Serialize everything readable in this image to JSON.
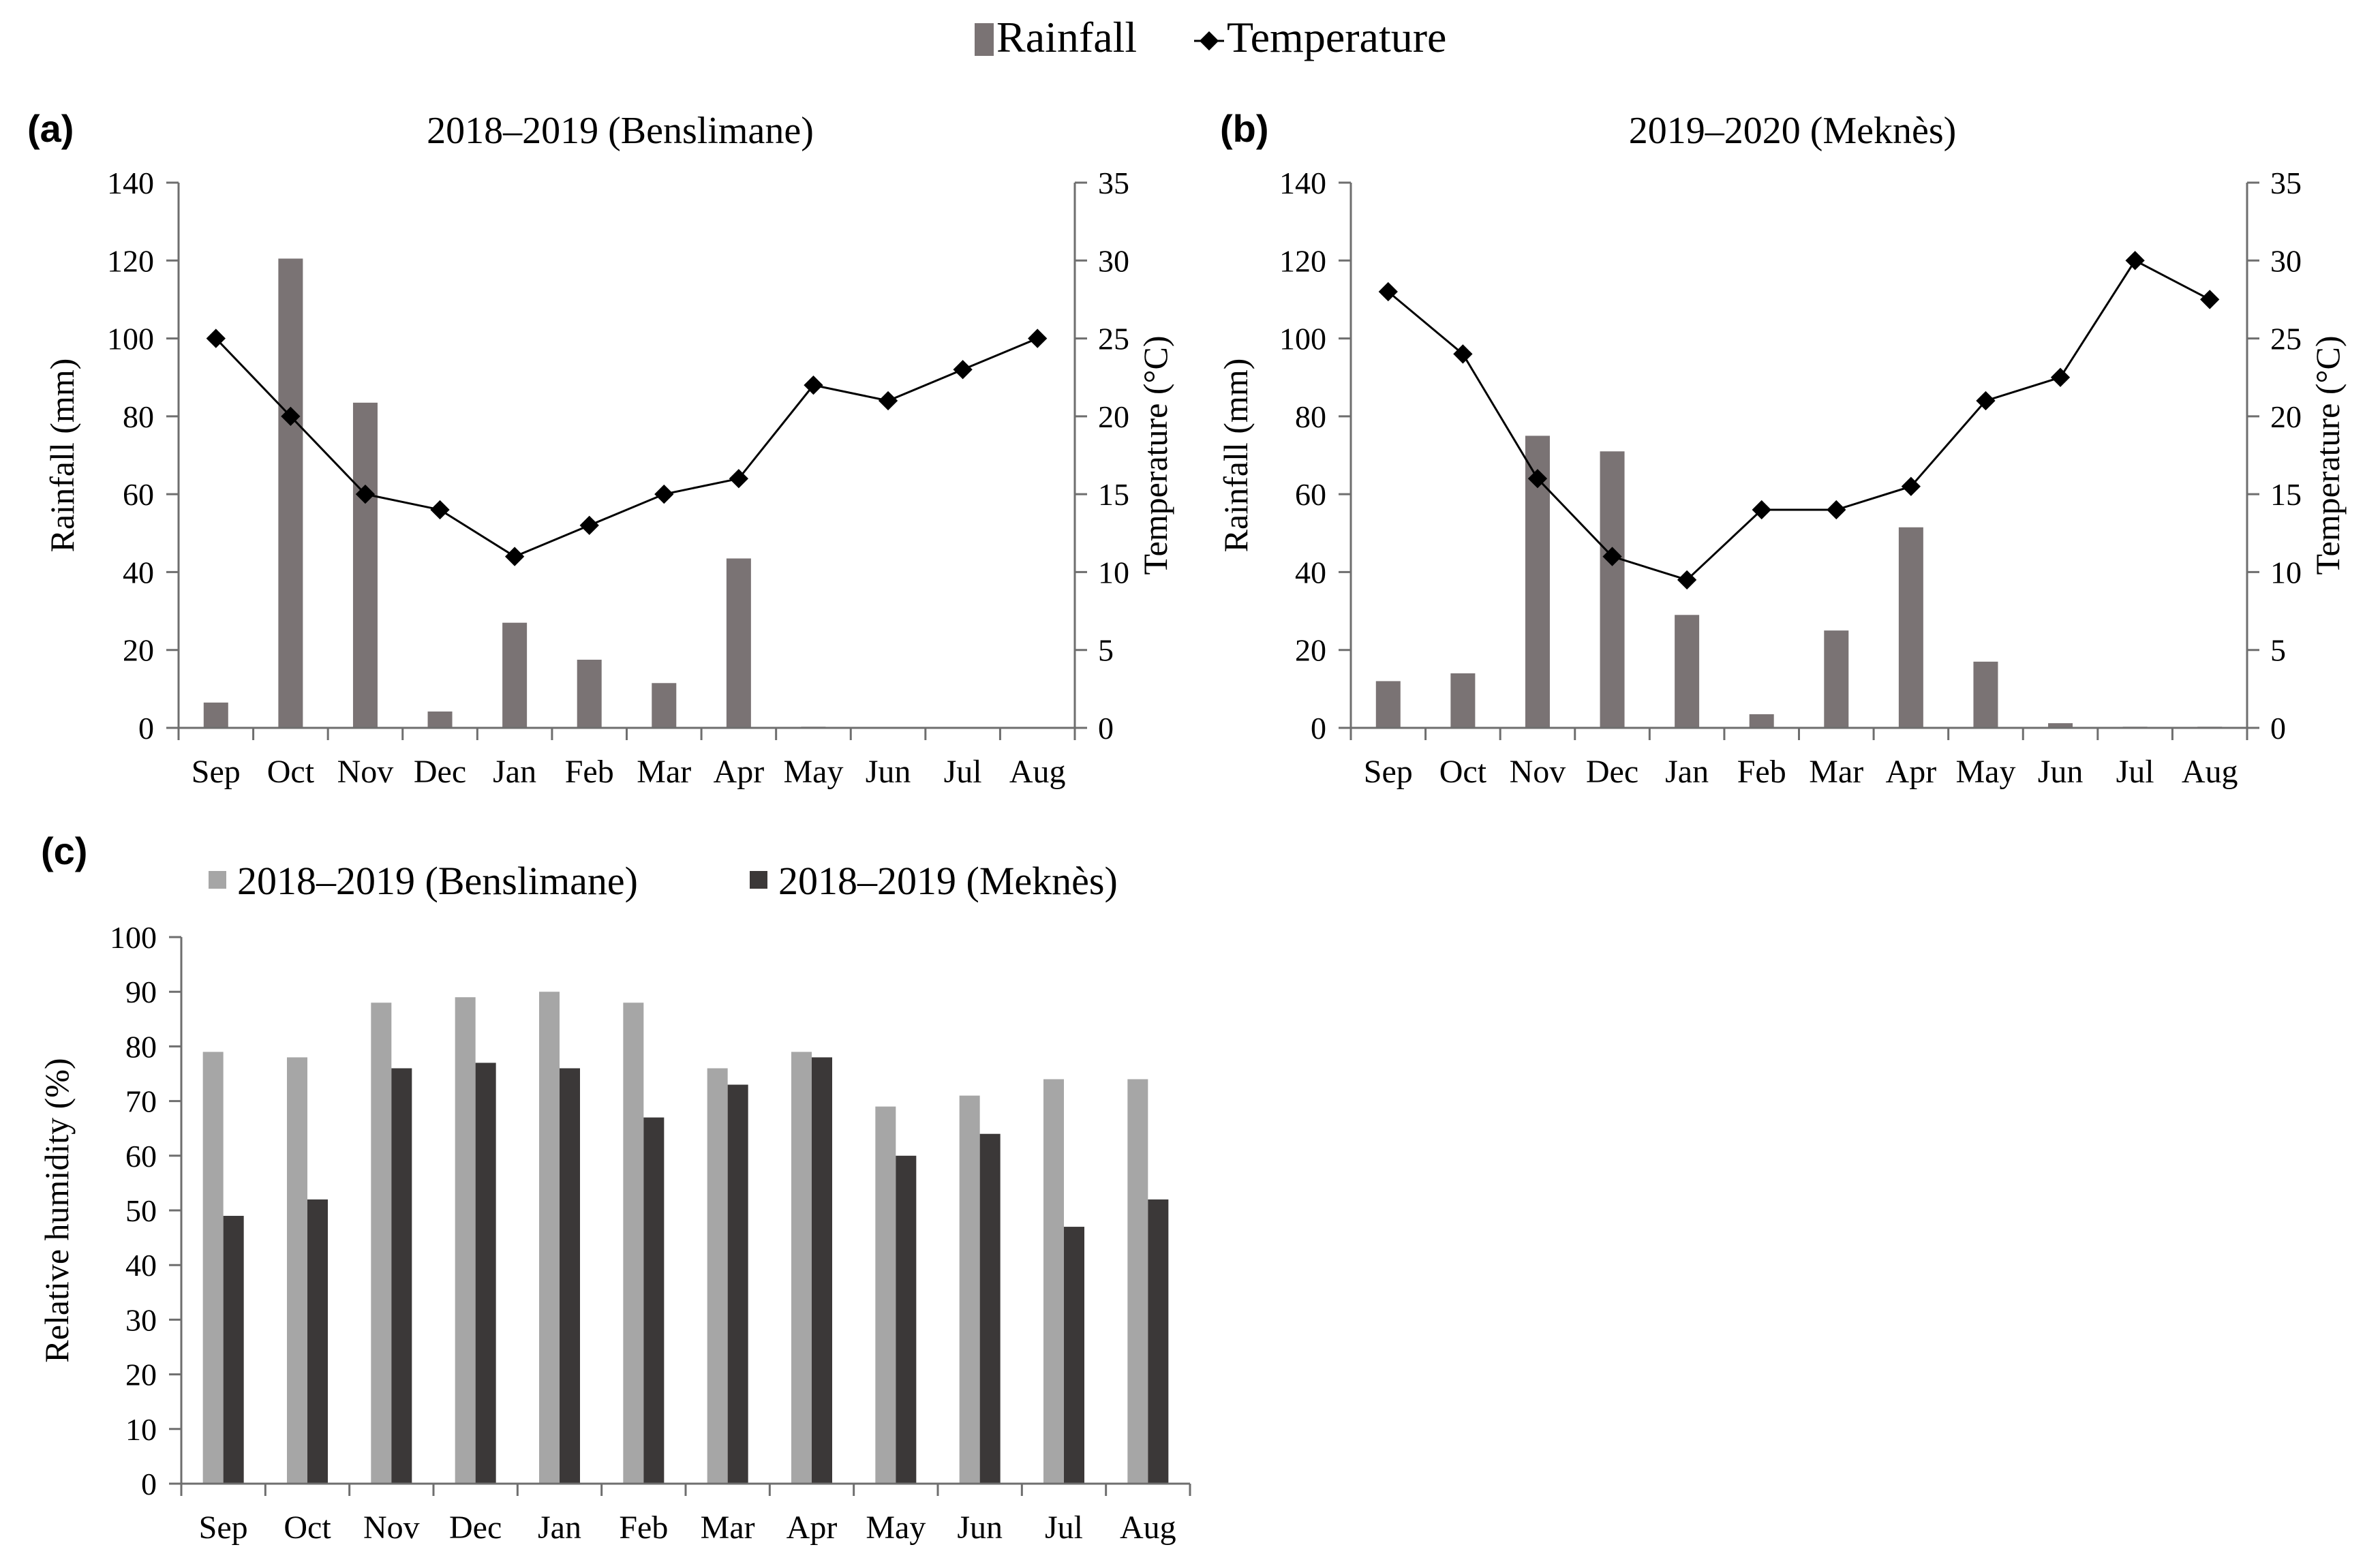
{
  "legend_top": {
    "rainfall_label": "Rainfall",
    "temperature_label": "Temperature"
  },
  "colors": {
    "rainfall_bar": "#7a7374",
    "temperature_line": "#000000",
    "benslimane_bar": "#a6a6a6",
    "meknes_bar": "#3b3838",
    "axis": "#6e6e6e"
  },
  "chart_data": [
    {
      "id": "a",
      "panel_label": "(a)",
      "type": "bar+line",
      "title": "2018–2019 (Benslimane)",
      "categories": [
        "Sep",
        "Oct",
        "Nov",
        "Dec",
        "Jan",
        "Feb",
        "Mar",
        "Apr",
        "May",
        "Jun",
        "Jul",
        "Aug"
      ],
      "ylabel": "Rainfall (mm)",
      "y2label": "Temperature (°C)",
      "ylim": [
        0,
        140
      ],
      "yticks": [
        "0",
        "20",
        "40",
        "60",
        "80",
        "100",
        "120",
        "140"
      ],
      "y2lim": [
        0,
        35
      ],
      "y2ticks": [
        "0",
        "5",
        "10",
        "15",
        "20",
        "25",
        "30",
        "35"
      ],
      "series": [
        {
          "name": "Rainfall",
          "type": "bar",
          "axis": "left",
          "values": [
            6.5,
            120.5,
            83.5,
            4.2,
            27,
            17.5,
            11.5,
            43.5,
            0.3,
            0,
            0,
            0
          ]
        },
        {
          "name": "Temperature",
          "type": "line",
          "axis": "right",
          "values": [
            25,
            20,
            15,
            14,
            11,
            13,
            15,
            16,
            22,
            21,
            23,
            25
          ]
        }
      ]
    },
    {
      "id": "b",
      "panel_label": "(b)",
      "type": "bar+line",
      "title": "2019–2020 (Meknès)",
      "categories": [
        "Sep",
        "Oct",
        "Nov",
        "Dec",
        "Jan",
        "Feb",
        "Mar",
        "Apr",
        "May",
        "Jun",
        "Jul",
        "Aug"
      ],
      "ylabel": "Rainfall (mm)",
      "y2label": "Temperature (°C)",
      "ylim": [
        0,
        140
      ],
      "yticks": [
        "0",
        "20",
        "40",
        "60",
        "80",
        "100",
        "120",
        "140"
      ],
      "y2lim": [
        0,
        35
      ],
      "y2ticks": [
        "0",
        "5",
        "10",
        "15",
        "20",
        "25",
        "30",
        "35"
      ],
      "series": [
        {
          "name": "Rainfall",
          "type": "bar",
          "axis": "left",
          "values": [
            12,
            14,
            75,
            71,
            29,
            3.5,
            25,
            51.5,
            17,
            1.2,
            0.3,
            0.3
          ]
        },
        {
          "name": "Temperature",
          "type": "line",
          "axis": "right",
          "values": [
            28,
            24,
            16,
            11,
            9.5,
            14,
            14,
            15.5,
            21,
            22.5,
            30,
            27.5
          ]
        }
      ]
    },
    {
      "id": "c",
      "panel_label": "(c)",
      "type": "bar",
      "title": "",
      "categories": [
        "Sep",
        "Oct",
        "Nov",
        "Dec",
        "Jan",
        "Feb",
        "Mar",
        "Apr",
        "May",
        "Jun",
        "Jul",
        "Aug"
      ],
      "ylabel": "Relative humidity (%)",
      "ylim": [
        0,
        100
      ],
      "yticks": [
        "0",
        "10",
        "20",
        "30",
        "40",
        "50",
        "60",
        "70",
        "80",
        "90",
        "100"
      ],
      "legend": [
        "2018–2019 (Benslimane)",
        "2018–2019 (Meknès)"
      ],
      "series": [
        {
          "name": "2018–2019 (Benslimane)",
          "values": [
            79,
            78,
            88,
            89,
            90,
            88,
            76,
            79,
            69,
            71,
            74,
            74
          ]
        },
        {
          "name": "2018–2019 (Meknès)",
          "values": [
            49,
            52,
            76,
            77,
            76,
            67,
            73,
            78,
            60,
            64,
            47,
            52
          ]
        }
      ]
    }
  ]
}
